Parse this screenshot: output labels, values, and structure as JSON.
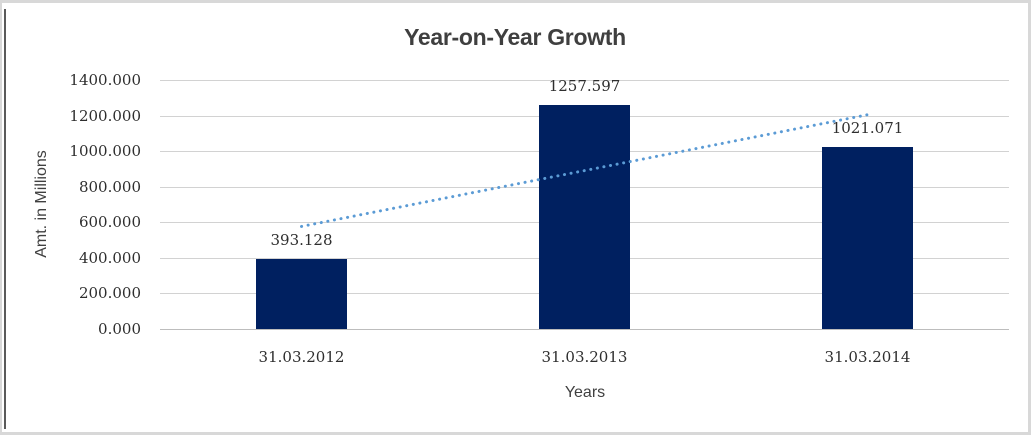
{
  "chart_data": {
    "type": "bar",
    "title": "Year-on-Year Growth",
    "xlabel": "Years",
    "ylabel": "Amt. in Millions",
    "categories": [
      "31.03.2012",
      "31.03.2013",
      "31.03.2014"
    ],
    "values": [
      393.128,
      1257.597,
      1021.071
    ],
    "value_labels": [
      "393.128",
      "1257.597",
      "1021.071"
    ],
    "y_ticks": [
      "0.000",
      "200.000",
      "400.000",
      "600.000",
      "800.000",
      "1000.000",
      "1200.000",
      "1400.000"
    ],
    "ylim": [
      0,
      1400
    ],
    "grid": true,
    "legend": "none",
    "trendline": {
      "type": "linear",
      "style": "dotted"
    },
    "colors": {
      "bar": "#002060",
      "trendline": "#5b9bd5",
      "gridline": "#d2d2d2",
      "axis_text": "#2e2e2e",
      "title_text": "#3f3f3f"
    }
  }
}
